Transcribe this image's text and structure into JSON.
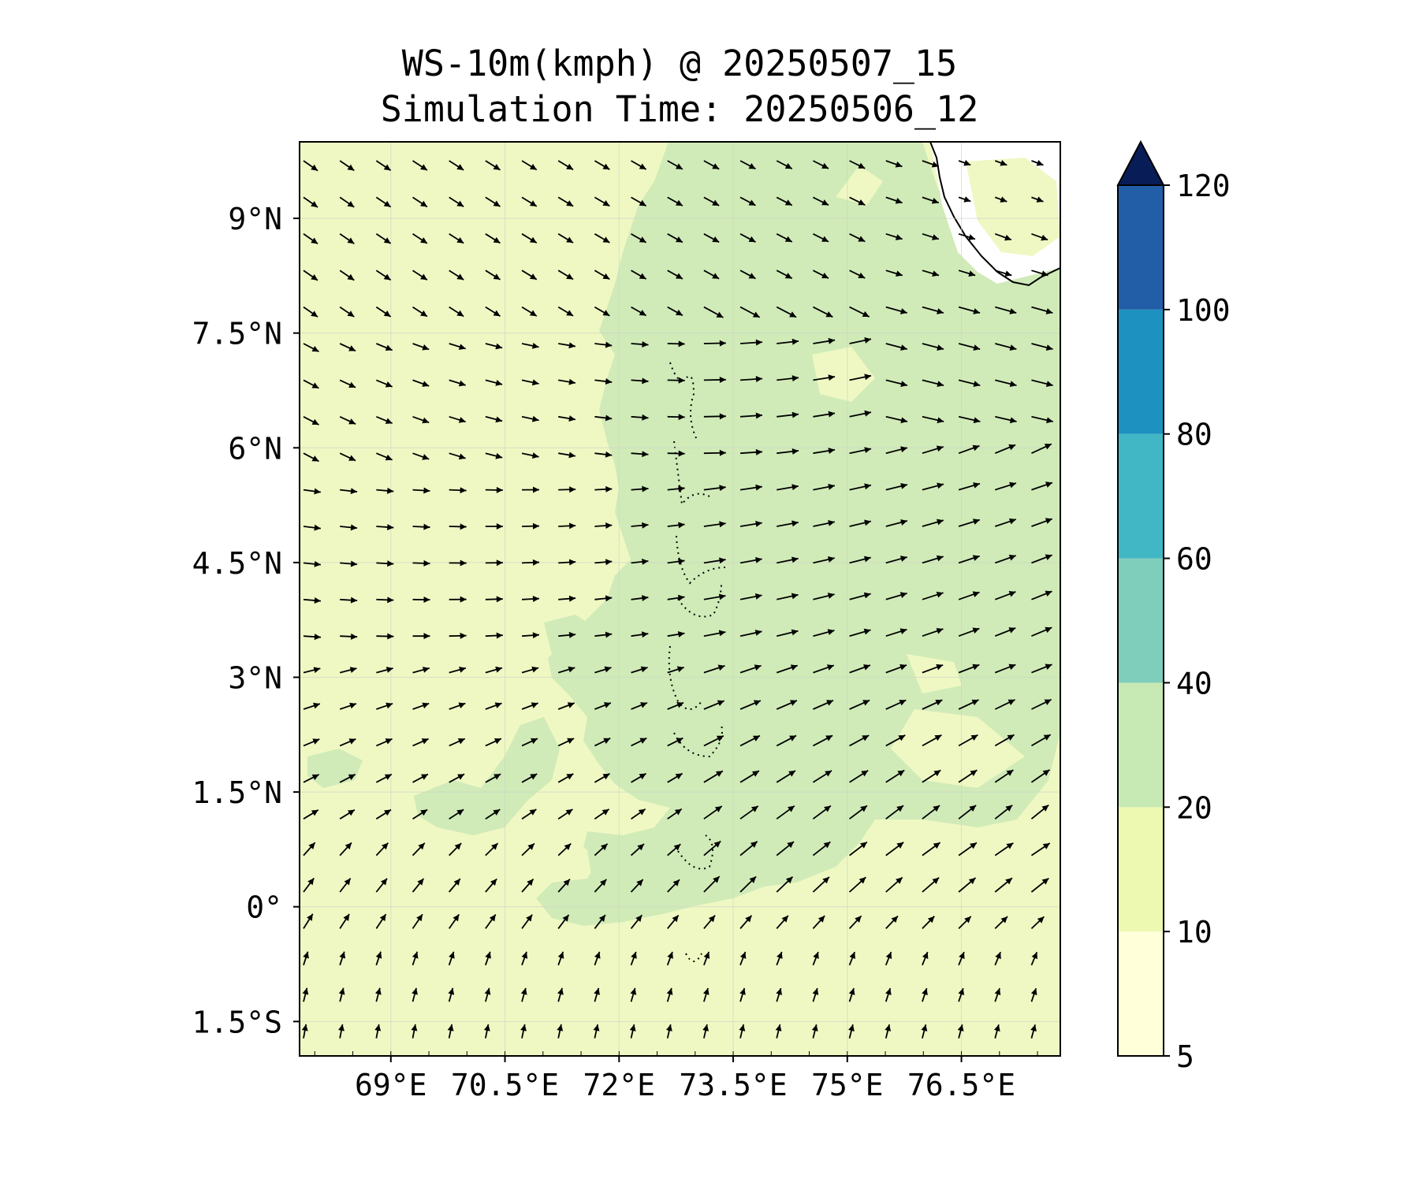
{
  "title": {
    "line1": "WS-10m(kmph) @ 20250507_15",
    "line2": "Simulation Time: 20250506_12"
  },
  "map": {
    "lon_range": [
      67.8,
      77.8
    ],
    "lat_range": [
      -1.95,
      10.0
    ],
    "x_ticks": [
      {
        "value": 69.0,
        "label": "69°E"
      },
      {
        "value": 70.5,
        "label": "70.5°E"
      },
      {
        "value": 72.0,
        "label": "72°E"
      },
      {
        "value": 73.5,
        "label": "73.5°E"
      },
      {
        "value": 75.0,
        "label": "75°E"
      },
      {
        "value": 76.5,
        "label": "76.5°E"
      }
    ],
    "y_ticks": [
      {
        "value": 9.0,
        "label": "9°N"
      },
      {
        "value": 7.5,
        "label": "7.5°N"
      },
      {
        "value": 6.0,
        "label": "6°N"
      },
      {
        "value": 4.5,
        "label": "4.5°N"
      },
      {
        "value": 3.0,
        "label": "3°N"
      },
      {
        "value": 1.5,
        "label": "1.5°N"
      },
      {
        "value": 0.0,
        "label": "0°"
      },
      {
        "value": -1.5,
        "label": "1.5°S"
      }
    ],
    "gridlines": true,
    "coastline": "Indian subcontinent tip (Kerala / Sri Lanka region) top-right",
    "islands": "Maldives atolls (dotted outlines) near 73.5°E"
  },
  "colorbar": {
    "levels": [
      5,
      10,
      20,
      40,
      60,
      80,
      100,
      120
    ],
    "colors": [
      "#ffffd9",
      "#edf8b1",
      "#c7e9b4",
      "#7fcdbb",
      "#41b6c4",
      "#1d91c0",
      "#225ea8",
      "#0c2c84"
    ],
    "extend": "max",
    "extend_color": "#081d58"
  },
  "field": {
    "background_range": "10-20 kmph",
    "patches_range": "20-40 kmph",
    "wind_regime": "northwesterly in the north, westerly at mid latitudes, southwesterly to southerly in the south"
  }
}
